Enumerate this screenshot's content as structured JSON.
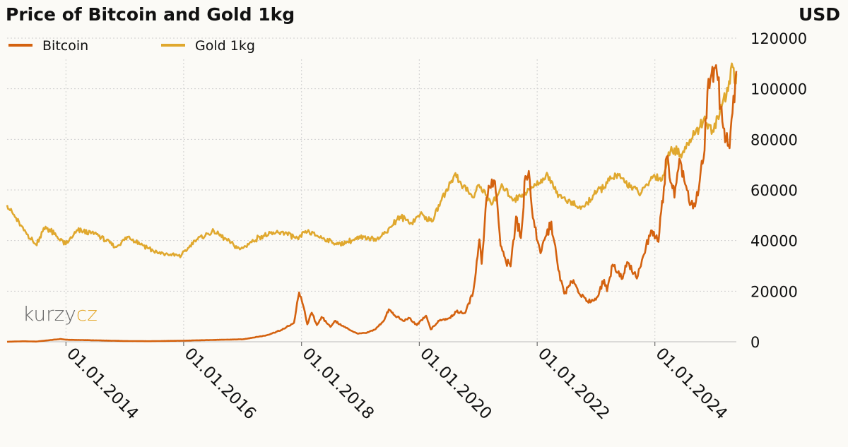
{
  "chart_data": {
    "type": "line",
    "title": "Price of Bitcoin and Gold 1kg",
    "unit_label": "USD",
    "ylim": [
      0,
      120000
    ],
    "yticks": [
      "0",
      "20000",
      "40000",
      "60000",
      "80000",
      "100000",
      "120000"
    ],
    "ytick_values": [
      0,
      20000,
      40000,
      60000,
      80000,
      100000,
      120000
    ],
    "xlim": [
      "2013-01-01",
      "2025-05-20"
    ],
    "xticks": [
      "01.01.2014",
      "01.01.2016",
      "01.01.2018",
      "01.01.2020",
      "01.01.2022",
      "01.01.2024"
    ],
    "xtick_dates": [
      "2014-01-01",
      "2016-01-01",
      "2018-01-01",
      "2020-01-01",
      "2022-01-01",
      "2024-01-01"
    ],
    "grid": true,
    "legend_position": "top-left",
    "series": [
      {
        "name": "Bitcoin",
        "color": "#d4620f",
        "points": [
          [
            "2013-01-01",
            13
          ],
          [
            "2013-04-10",
            200
          ],
          [
            "2013-07-01",
            90
          ],
          [
            "2013-11-30",
            1100
          ],
          [
            "2014-01-01",
            800
          ],
          [
            "2014-06-01",
            620
          ],
          [
            "2015-01-01",
            300
          ],
          [
            "2015-06-01",
            230
          ],
          [
            "2016-01-01",
            430
          ],
          [
            "2016-06-15",
            700
          ],
          [
            "2017-01-01",
            980
          ],
          [
            "2017-05-25",
            2500
          ],
          [
            "2017-09-01",
            4700
          ],
          [
            "2017-11-15",
            7500
          ],
          [
            "2017-12-17",
            19500
          ],
          [
            "2018-01-10",
            14500
          ],
          [
            "2018-02-06",
            6900
          ],
          [
            "2018-03-05",
            11500
          ],
          [
            "2018-04-06",
            6600
          ],
          [
            "2018-05-05",
            9800
          ],
          [
            "2018-06-29",
            5900
          ],
          [
            "2018-07-25",
            8200
          ],
          [
            "2018-09-10",
            6300
          ],
          [
            "2018-11-25",
            3800
          ],
          [
            "2018-12-15",
            3200
          ],
          [
            "2019-02-08",
            3500
          ],
          [
            "2019-04-05",
            5000
          ],
          [
            "2019-05-30",
            8700
          ],
          [
            "2019-06-26",
            12800
          ],
          [
            "2019-08-01",
            10500
          ],
          [
            "2019-09-25",
            8200
          ],
          [
            "2019-10-26",
            9500
          ],
          [
            "2019-12-17",
            6600
          ],
          [
            "2020-02-12",
            10300
          ],
          [
            "2020-03-12",
            4900
          ],
          [
            "2020-05-10",
            8700
          ],
          [
            "2020-07-01",
            9200
          ],
          [
            "2020-08-17",
            11900
          ],
          [
            "2020-10-10",
            11300
          ],
          [
            "2020-11-30",
            19500
          ],
          [
            "2021-01-08",
            40500
          ],
          [
            "2021-01-22",
            30800
          ],
          [
            "2021-02-21",
            57000
          ],
          [
            "2021-03-13",
            61000
          ],
          [
            "2021-04-14",
            63500
          ],
          [
            "2021-05-19",
            38000
          ],
          [
            "2021-06-22",
            31500
          ],
          [
            "2021-07-20",
            29800
          ],
          [
            "2021-08-23",
            49500
          ],
          [
            "2021-09-22",
            41000
          ],
          [
            "2021-10-20",
            65500
          ],
          [
            "2021-11-10",
            67500
          ],
          [
            "2021-12-05",
            49000
          ],
          [
            "2022-01-22",
            35000
          ],
          [
            "2022-03-30",
            47500
          ],
          [
            "2022-05-12",
            28500
          ],
          [
            "2022-06-18",
            19000
          ],
          [
            "2022-08-14",
            24400
          ],
          [
            "2022-09-20",
            19000
          ],
          [
            "2022-11-09",
            16000
          ],
          [
            "2022-12-31",
            16600
          ],
          [
            "2023-02-20",
            24500
          ],
          [
            "2023-03-10",
            20000
          ],
          [
            "2023-04-14",
            30500
          ],
          [
            "2023-06-15",
            25000
          ],
          [
            "2023-07-13",
            31500
          ],
          [
            "2023-09-11",
            25000
          ],
          [
            "2023-10-25",
            34500
          ],
          [
            "2023-12-08",
            44000
          ],
          [
            "2024-01-23",
            39500
          ],
          [
            "2024-03-14",
            73000
          ],
          [
            "2024-05-01",
            57000
          ],
          [
            "2024-06-07",
            71500
          ],
          [
            "2024-08-05",
            54000
          ],
          [
            "2024-09-06",
            53500
          ],
          [
            "2024-10-29",
            72500
          ],
          [
            "2024-11-22",
            99000
          ],
          [
            "2024-12-17",
            106000
          ],
          [
            "2025-01-20",
            106000
          ],
          [
            "2025-02-28",
            84500
          ],
          [
            "2025-04-08",
            76500
          ],
          [
            "2025-05-20",
            107000
          ]
        ]
      },
      {
        "name": "Gold 1kg",
        "color": "#e0a82e",
        "points": [
          [
            "2013-01-01",
            54000
          ],
          [
            "2013-04-15",
            44000
          ],
          [
            "2013-06-28",
            38500
          ],
          [
            "2013-08-28",
            45500
          ],
          [
            "2013-12-31",
            38500
          ],
          [
            "2014-03-15",
            44000
          ],
          [
            "2014-07-10",
            42500
          ],
          [
            "2014-11-05",
            37500
          ],
          [
            "2015-01-22",
            41500
          ],
          [
            "2015-07-24",
            35000
          ],
          [
            "2015-12-17",
            34000
          ],
          [
            "2016-03-10",
            40000
          ],
          [
            "2016-07-06",
            43800
          ],
          [
            "2016-12-15",
            36500
          ],
          [
            "2017-04-15",
            41500
          ],
          [
            "2017-09-08",
            43500
          ],
          [
            "2017-12-12",
            40500
          ],
          [
            "2018-01-25",
            43800
          ],
          [
            "2018-08-16",
            38500
          ],
          [
            "2018-12-31",
            41000
          ],
          [
            "2019-05-01",
            41000
          ],
          [
            "2019-09-04",
            49500
          ],
          [
            "2019-11-15",
            47000
          ],
          [
            "2020-01-07",
            50500
          ],
          [
            "2020-03-19",
            47500
          ],
          [
            "2020-05-18",
            56000
          ],
          [
            "2020-08-06",
            66000
          ],
          [
            "2020-11-30",
            57000
          ],
          [
            "2021-01-05",
            62000
          ],
          [
            "2021-03-30",
            54500
          ],
          [
            "2021-06-01",
            61500
          ],
          [
            "2021-08-09",
            56000
          ],
          [
            "2021-11-16",
            60000
          ],
          [
            "2022-03-08",
            66000
          ],
          [
            "2022-05-16",
            58000
          ],
          [
            "2022-09-28",
            52500
          ],
          [
            "2022-12-31",
            58500
          ],
          [
            "2023-05-04",
            66000
          ],
          [
            "2023-10-05",
            58500
          ],
          [
            "2023-12-28",
            66000
          ],
          [
            "2024-02-14",
            64000
          ],
          [
            "2024-04-12",
            77000
          ],
          [
            "2024-06-07",
            74000
          ],
          [
            "2024-08-21",
            80500
          ],
          [
            "2024-10-30",
            88000
          ],
          [
            "2024-12-30",
            83000
          ],
          [
            "2025-02-24",
            94500
          ],
          [
            "2025-04-10",
            102000
          ],
          [
            "2025-04-22",
            110000
          ],
          [
            "2025-05-15",
            102000
          ],
          [
            "2025-05-20",
            106000
          ]
        ]
      }
    ]
  },
  "watermark": {
    "part1": "kurzy",
    "part2": "cz"
  }
}
